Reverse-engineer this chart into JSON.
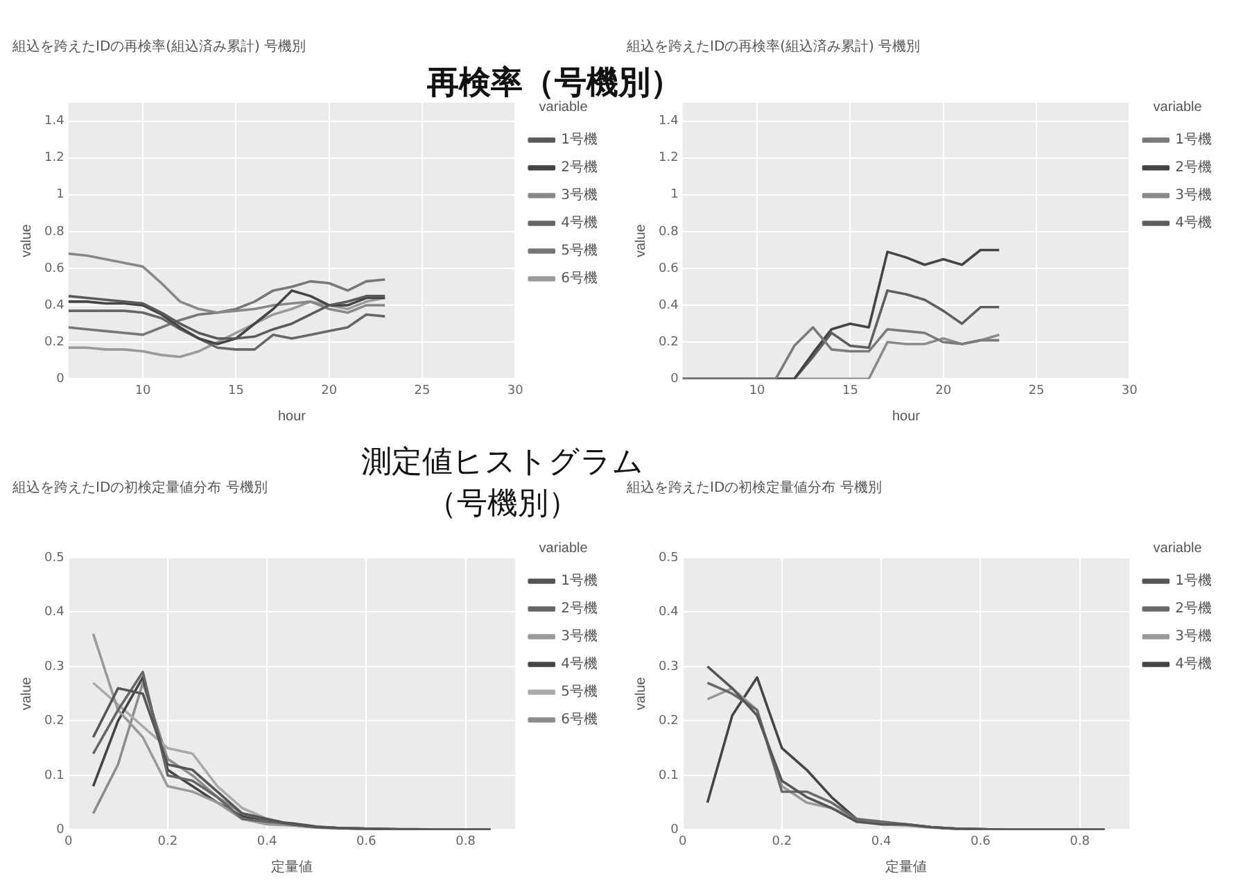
{
  "chart_data": [
    {
      "type": "line",
      "title": "組込を跨えたIDの再検率(組込済み累計) 号機別",
      "xlabel": "hour",
      "ylabel": "value",
      "legend_title": "variable",
      "legend": "right",
      "marker": "none",
      "grid": true,
      "annotations": [
        "再検率（号機別）"
      ],
      "x": [
        6,
        7,
        8,
        9,
        10,
        11,
        12,
        13,
        14,
        15,
        16,
        17,
        18,
        19,
        20,
        21,
        22,
        23
      ],
      "xlim": [
        6,
        30
      ],
      "xticks": [
        10,
        15,
        20,
        25,
        30
      ],
      "ylim": [
        0,
        1.5
      ],
      "yticks": [
        0,
        0.2,
        0.4,
        0.6,
        0.8,
        1,
        1.2,
        1.4
      ],
      "series": [
        {
          "name": "1号機",
          "color": "#5a5a5a",
          "values": [
            0.45,
            0.44,
            0.43,
            0.42,
            0.41,
            0.36,
            0.3,
            0.25,
            0.22,
            0.22,
            0.23,
            0.27,
            0.3,
            0.35,
            0.4,
            0.42,
            0.45,
            0.45
          ]
        },
        {
          "name": "2号機",
          "color": "#444444",
          "values": [
            0.42,
            0.42,
            0.41,
            0.41,
            0.4,
            0.35,
            0.28,
            0.22,
            0.19,
            0.22,
            0.3,
            0.38,
            0.48,
            0.45,
            0.4,
            0.4,
            0.44,
            0.44
          ]
        },
        {
          "name": "3号機",
          "color": "#888888",
          "values": [
            0.68,
            0.67,
            0.65,
            0.63,
            0.61,
            0.52,
            0.42,
            0.38,
            0.36,
            0.37,
            0.38,
            0.4,
            0.41,
            0.42,
            0.38,
            0.36,
            0.4,
            0.4
          ]
        },
        {
          "name": "4号機",
          "color": "#666666",
          "values": [
            0.37,
            0.37,
            0.37,
            0.37,
            0.36,
            0.33,
            0.27,
            0.22,
            0.17,
            0.16,
            0.16,
            0.24,
            0.22,
            0.24,
            0.26,
            0.28,
            0.35,
            0.34
          ]
        },
        {
          "name": "5号機",
          "color": "#777777",
          "values": [
            0.28,
            0.27,
            0.26,
            0.25,
            0.24,
            0.28,
            0.32,
            0.35,
            0.36,
            0.38,
            0.42,
            0.48,
            0.5,
            0.53,
            0.52,
            0.48,
            0.53,
            0.54
          ]
        },
        {
          "name": "6号機",
          "color": "#9a9a9a",
          "values": [
            0.17,
            0.17,
            0.16,
            0.16,
            0.15,
            0.13,
            0.12,
            0.15,
            0.2,
            0.25,
            0.3,
            0.35,
            0.38,
            0.42,
            0.4,
            0.38,
            0.42,
            0.44
          ]
        }
      ]
    },
    {
      "type": "line",
      "title": "組込を跨えたIDの再検率(組込済み累計) 号機別",
      "xlabel": "hour",
      "ylabel": "value",
      "legend_title": "variable",
      "legend": "right",
      "marker": "none",
      "grid": true,
      "x": [
        6,
        7,
        8,
        9,
        10,
        11,
        12,
        13,
        14,
        15,
        16,
        17,
        18,
        19,
        20,
        21,
        22,
        23
      ],
      "xlim": [
        6,
        30
      ],
      "xticks": [
        10,
        15,
        20,
        25,
        30
      ],
      "ylim": [
        0,
        1.5
      ],
      "yticks": [
        0,
        0.2,
        0.4,
        0.6,
        0.8,
        1,
        1.2,
        1.4
      ],
      "series": [
        {
          "name": "1号機",
          "color": "#7a7a7a",
          "values": [
            0,
            0,
            0,
            0,
            0,
            0,
            0.18,
            0.28,
            0.16,
            0.15,
            0.15,
            0.27,
            0.26,
            0.25,
            0.2,
            0.19,
            0.21,
            0.21
          ]
        },
        {
          "name": "2号機",
          "color": "#444444",
          "values": [
            0,
            0,
            0,
            0,
            0,
            0,
            0,
            0.14,
            0.27,
            0.3,
            0.28,
            0.69,
            0.66,
            0.62,
            0.65,
            0.62,
            0.7,
            0.7
          ]
        },
        {
          "name": "3号機",
          "color": "#8a8a8a",
          "values": [
            0,
            0,
            0,
            0,
            0,
            0,
            0,
            0,
            0,
            0,
            0,
            0.2,
            0.19,
            0.19,
            0.22,
            0.19,
            0.21,
            0.24
          ]
        },
        {
          "name": "4号機",
          "color": "#5e5e5e",
          "values": [
            0,
            0,
            0,
            0,
            0,
            0,
            0,
            0.12,
            0.25,
            0.18,
            0.17,
            0.48,
            0.46,
            0.43,
            0.37,
            0.3,
            0.39,
            0.39
          ]
        }
      ]
    },
    {
      "type": "line",
      "title": "組込を跨えたIDの初検定量値分布 号機別",
      "xlabel": "定量値",
      "ylabel": "value",
      "legend_title": "variable",
      "legend": "right",
      "marker": "none",
      "grid": true,
      "annotations": [
        "測定値ヒストグラム（号機別）"
      ],
      "x": [
        0.05,
        0.1,
        0.15,
        0.2,
        0.25,
        0.3,
        0.35,
        0.4,
        0.45,
        0.5,
        0.55,
        0.6,
        0.65,
        0.7,
        0.75,
        0.8,
        0.85
      ],
      "xlim": [
        0,
        0.9
      ],
      "xticks": [
        0,
        0.2,
        0.4,
        0.6,
        0.8
      ],
      "ylim": [
        0,
        0.5
      ],
      "yticks": [
        0,
        0.1,
        0.2,
        0.3,
        0.4,
        0.5
      ],
      "series": [
        {
          "name": "1号機",
          "color": "#555555",
          "values": [
            0.17,
            0.26,
            0.25,
            0.12,
            0.11,
            0.07,
            0.03,
            0.02,
            0.01,
            0.005,
            0.003,
            0.002,
            0.001,
            0.001,
            0,
            0,
            0
          ]
        },
        {
          "name": "2号機",
          "color": "#666666",
          "values": [
            0.14,
            0.22,
            0.29,
            0.1,
            0.09,
            0.06,
            0.02,
            0.015,
            0.01,
            0.005,
            0.003,
            0.002,
            0.001,
            0,
            0,
            0,
            0
          ]
        },
        {
          "name": "3号機",
          "color": "#999999",
          "values": [
            0.36,
            0.22,
            0.17,
            0.08,
            0.07,
            0.05,
            0.02,
            0.01,
            0.008,
            0.004,
            0.002,
            0.001,
            0,
            0,
            0,
            0,
            0
          ]
        },
        {
          "name": "4号機",
          "color": "#444444",
          "values": [
            0.08,
            0.2,
            0.28,
            0.11,
            0.08,
            0.05,
            0.025,
            0.015,
            0.012,
            0.006,
            0.003,
            0.002,
            0.001,
            0,
            0,
            0,
            0
          ]
        },
        {
          "name": "5号機",
          "color": "#aaaaaa",
          "values": [
            0.27,
            0.23,
            0.19,
            0.15,
            0.14,
            0.08,
            0.04,
            0.02,
            0.01,
            0.005,
            0.003,
            0.002,
            0.001,
            0,
            0,
            0,
            0
          ]
        },
        {
          "name": "6号機",
          "color": "#8c8c8c",
          "values": [
            0.03,
            0.12,
            0.27,
            0.13,
            0.1,
            0.06,
            0.03,
            0.02,
            0.01,
            0.005,
            0.003,
            0.002,
            0.001,
            0,
            0,
            0,
            0
          ]
        }
      ]
    },
    {
      "type": "line",
      "title": "組込を跨えたIDの初検定量値分布 号機別",
      "xlabel": "定量値",
      "ylabel": "value",
      "legend_title": "variable",
      "legend": "right",
      "marker": "none",
      "grid": true,
      "x": [
        0.05,
        0.1,
        0.15,
        0.2,
        0.25,
        0.3,
        0.35,
        0.4,
        0.45,
        0.5,
        0.55,
        0.6,
        0.65,
        0.7,
        0.75,
        0.8,
        0.85
      ],
      "xlim": [
        0,
        0.9
      ],
      "xticks": [
        0,
        0.2,
        0.4,
        0.6,
        0.8
      ],
      "ylim": [
        0,
        0.5
      ],
      "yticks": [
        0,
        0.1,
        0.2,
        0.3,
        0.4,
        0.5
      ],
      "series": [
        {
          "name": "1号機",
          "color": "#555555",
          "values": [
            0.3,
            0.26,
            0.21,
            0.09,
            0.06,
            0.04,
            0.015,
            0.01,
            0.01,
            0.005,
            0.002,
            0.001,
            0,
            0,
            0,
            0,
            0
          ]
        },
        {
          "name": "2号機",
          "color": "#6a6a6a",
          "values": [
            0.27,
            0.25,
            0.22,
            0.07,
            0.07,
            0.05,
            0.02,
            0.015,
            0.01,
            0.005,
            0.002,
            0.001,
            0,
            0,
            0,
            0,
            0
          ]
        },
        {
          "name": "3号機",
          "color": "#999999",
          "values": [
            0.24,
            0.26,
            0.22,
            0.08,
            0.05,
            0.04,
            0.02,
            0.01,
            0.008,
            0.004,
            0.002,
            0.001,
            0,
            0,
            0,
            0,
            0
          ]
        },
        {
          "name": "4号機",
          "color": "#444444",
          "values": [
            0.05,
            0.21,
            0.28,
            0.15,
            0.11,
            0.06,
            0.02,
            0.01,
            0.01,
            0.005,
            0.002,
            0.001,
            0,
            0,
            0,
            0,
            0
          ]
        }
      ]
    }
  ]
}
